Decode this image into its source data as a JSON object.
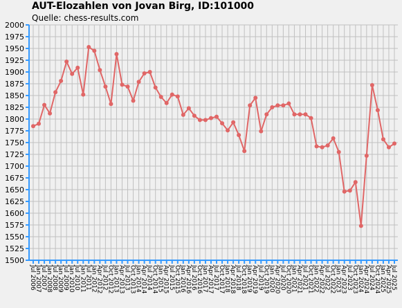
{
  "chart_data": {
    "type": "line",
    "title": "AUT-Elozahlen von Jovan Birg, ID:101000",
    "subtitle": "Quelle: chess-results.com",
    "xlabel": "",
    "ylabel": "",
    "ylim": [
      1500,
      2000
    ],
    "ytick_step": 25,
    "grid": true,
    "legend": "none",
    "colors": {
      "line": "#e06666",
      "marker": "#e06666",
      "axis": "#3399ff",
      "grid": "#c0c0c0",
      "background": "#f0f0f0"
    },
    "x_tick_labels": [
      "Jul 2006",
      "Jan 2007",
      "Jul 2007",
      "Jan 2008",
      "Jul 2008",
      "Jan 2009",
      "Jul 2009",
      "Jan 2010",
      "Jul 2010",
      "Jan 2011",
      "Jul 2011",
      "Jan 2012",
      "Apr 2012",
      "Jul 2012",
      "Oct 2012",
      "Jan 2013",
      "Apr 2013",
      "Jul 2013",
      "Oct 2013",
      "Jan 2014",
      "Apr 2014",
      "Jul 2014",
      "Oct 2014",
      "Jan 2015",
      "Apr 2015",
      "Jul 2015",
      "Oct 2015",
      "Jan 2016",
      "Apr 2016",
      "Jul 2016",
      "Oct 2016",
      "Jan 2017",
      "Apr 2017",
      "Jul 2017",
      "Oct 2017",
      "Jan 2018",
      "Apr 2018",
      "Jul 2018",
      "Oct 2018",
      "Jan 2019",
      "Apr 2019",
      "Jul 2019",
      "Oct 2019",
      "Jan 2020",
      "Apr 2020",
      "Jul 2020",
      "Oct 2020",
      "Jan 2021",
      "Apr 2021",
      "Jul 2021",
      "Oct 2021",
      "Jan 2022",
      "Apr 2022",
      "Jul 2022",
      "Oct 2022",
      "Jan 2023",
      "Apr 2023",
      "Jul 2023",
      "Oct 2023",
      "Jan 2024",
      "Apr 2024",
      "Jul 2024",
      "Oct 2024",
      "Jan 2025",
      "Apr 2025",
      "Jul 2025"
    ],
    "series": [
      {
        "values": [
          1785,
          1790,
          1830,
          1812,
          1857,
          1881,
          1922,
          1896,
          1909,
          1852,
          1953,
          1945,
          1904,
          1869,
          1832,
          1938,
          1873,
          1869,
          1839,
          1879,
          1897,
          1900,
          1867,
          1847,
          1834,
          1852,
          1848,
          1809,
          1823,
          1807,
          1798,
          1798,
          1802,
          1805,
          1791,
          1776,
          1793,
          1766,
          1732,
          1829,
          1845,
          1774,
          1810,
          1825,
          1829,
          1829,
          1833,
          1810,
          1810,
          1810,
          1802,
          1742,
          1740,
          1744,
          1759,
          1730,
          1646,
          1648,
          1666,
          1573,
          1722,
          1872,
          1819,
          1757,
          1740,
          1748
        ]
      }
    ]
  }
}
